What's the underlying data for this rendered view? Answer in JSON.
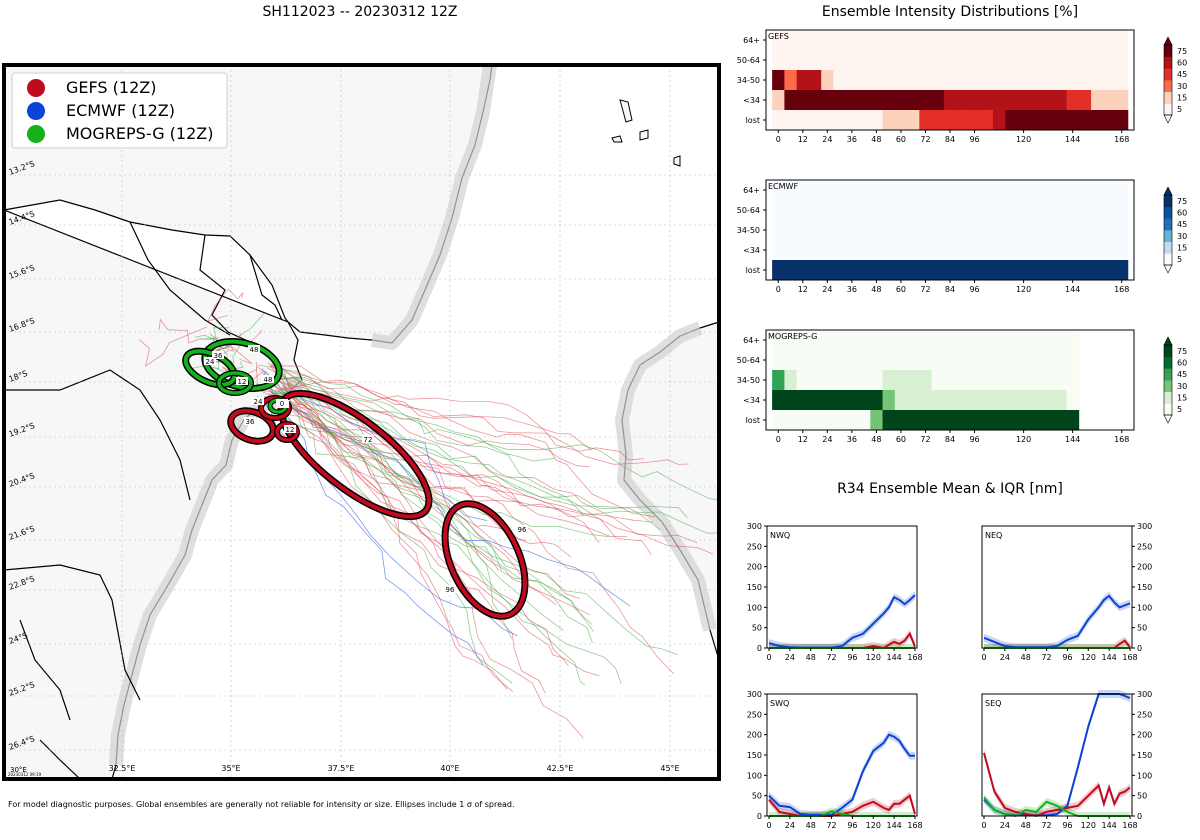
{
  "title": "SH112023 -- 20230312 12Z",
  "footnote": "For model diagnostic purposes. Global ensembles are generally not reliable for intensity or size. Ellipses include 1 σ of spread.",
  "stamp": "20230312 09:19",
  "legend": [
    {
      "label": "GEFS (12Z)",
      "color": "#c10a1e"
    },
    {
      "label": "ECMWF (12Z)",
      "color": "#0a44d6"
    },
    {
      "label": "MOGREPS-G (12Z)",
      "color": "#16b01c"
    }
  ],
  "map": {
    "lat_labels": [
      "13.2°S",
      "14.4°S",
      "15.6°S",
      "16.8°S",
      "18°S",
      "19.2°S",
      "20.4°S",
      "21.6°S",
      "22.8°S",
      "24°S",
      "25.2°S",
      "26.4°S"
    ],
    "lon_labels": [
      "32.5°E",
      "35°E",
      "37.5°E",
      "40°E",
      "42.5°E",
      "45°E"
    ],
    "corner_label": "30°E",
    "ellipse_labels_gefs": [
      "0",
      "12",
      "24",
      "36",
      "48",
      "72",
      "96",
      "96"
    ],
    "ellipse_labels_mog": [
      "0",
      "12",
      "24",
      "36",
      "48"
    ]
  },
  "intensity": {
    "title": "Ensemble Intensity Distributions [%]",
    "rows": [
      "64+",
      "50-64",
      "34-50",
      "<34",
      "lost"
    ],
    "xticks": [
      "0",
      "12",
      "24",
      "36",
      "48",
      "60",
      "72",
      "84",
      "96",
      "120",
      "144",
      "168"
    ],
    "cbar_ticks": [
      "5",
      "15",
      "30",
      "45",
      "60",
      "75"
    ],
    "panels": [
      {
        "name": "GEFS",
        "cmap": "reds"
      },
      {
        "name": "ECMWF",
        "cmap": "blues"
      },
      {
        "name": "MOGREPS-G",
        "cmap": "greens"
      }
    ]
  },
  "r34": {
    "title": "R34 Ensemble Mean & IQR [nm]",
    "yticks": [
      "0",
      "50",
      "100",
      "150",
      "200",
      "250",
      "300"
    ],
    "xticks": [
      "0",
      "24",
      "48",
      "72",
      "96",
      "120",
      "144",
      "168"
    ],
    "panels": [
      "NWQ",
      "NEQ",
      "SWQ",
      "SEQ"
    ]
  },
  "chart_data": [
    {
      "type": "heatmap",
      "title": "GEFS",
      "x": [
        0,
        6,
        12,
        18,
        24,
        30,
        36,
        42,
        48,
        54,
        60,
        66,
        72,
        78,
        84,
        90,
        96,
        102,
        108,
        114,
        120,
        126,
        132,
        138,
        144,
        150,
        156,
        162,
        168
      ],
      "rows": [
        "64+",
        "50-64",
        "34-50",
        "<34",
        "lost"
      ],
      "values": [
        [
          2,
          2,
          2,
          2,
          2,
          2,
          2,
          2,
          2,
          2,
          2,
          2,
          2,
          2,
          2,
          2,
          2,
          2,
          2,
          2,
          2,
          2,
          2,
          2,
          2,
          2,
          2,
          2,
          2
        ],
        [
          2,
          2,
          2,
          2,
          2,
          2,
          2,
          2,
          2,
          2,
          2,
          2,
          2,
          2,
          2,
          2,
          2,
          2,
          2,
          2,
          2,
          2,
          2,
          2,
          2,
          2,
          2,
          2,
          2
        ],
        [
          80,
          18,
          45,
          45,
          12,
          2,
          2,
          2,
          2,
          2,
          2,
          2,
          2,
          2,
          2,
          2,
          2,
          2,
          2,
          2,
          2,
          2,
          2,
          2,
          2,
          2,
          2,
          2,
          2
        ],
        [
          12,
          70,
          70,
          80,
          80,
          80,
          80,
          80,
          80,
          80,
          80,
          70,
          70,
          70,
          55,
          55,
          55,
          55,
          45,
          45,
          45,
          45,
          45,
          45,
          30,
          30,
          12,
          12,
          12
        ],
        [
          2,
          2,
          2,
          2,
          2,
          2,
          2,
          2,
          2,
          8,
          8,
          12,
          30,
          30,
          30,
          30,
          30,
          30,
          45,
          60,
          60,
          60,
          60,
          60,
          60,
          60,
          60,
          80,
          80
        ]
      ]
    },
    {
      "type": "heatmap",
      "title": "ECMWF",
      "x": [
        0,
        6,
        12,
        18,
        24,
        30,
        36,
        42,
        48,
        54,
        60,
        66,
        72,
        78,
        84,
        90,
        96,
        102,
        108,
        114,
        120,
        126,
        132,
        138,
        144,
        150,
        156,
        162,
        168
      ],
      "rows": [
        "64+",
        "50-64",
        "34-50",
        "<34",
        "lost"
      ],
      "values": [
        [
          2,
          2,
          2,
          2,
          2,
          2,
          2,
          2,
          2,
          2,
          2,
          2,
          2,
          2,
          2,
          2,
          2,
          2,
          2,
          2,
          2,
          2,
          2,
          2,
          2,
          2,
          2,
          2,
          2
        ],
        [
          2,
          2,
          2,
          2,
          2,
          2,
          2,
          2,
          2,
          2,
          2,
          2,
          2,
          2,
          2,
          2,
          2,
          2,
          2,
          2,
          2,
          2,
          2,
          2,
          2,
          2,
          2,
          2,
          2
        ],
        [
          2,
          2,
          2,
          2,
          2,
          2,
          2,
          2,
          2,
          2,
          2,
          2,
          2,
          2,
          2,
          2,
          2,
          2,
          2,
          2,
          2,
          2,
          2,
          2,
          2,
          2,
          2,
          2,
          2
        ],
        [
          2,
          2,
          2,
          2,
          2,
          2,
          2,
          2,
          2,
          2,
          2,
          2,
          2,
          2,
          2,
          2,
          2,
          2,
          2,
          2,
          2,
          2,
          2,
          2,
          2,
          2,
          2,
          2,
          2
        ],
        [
          100,
          100,
          100,
          100,
          100,
          100,
          100,
          100,
          100,
          100,
          100,
          100,
          100,
          100,
          100,
          100,
          100,
          100,
          100,
          100,
          100,
          100,
          100,
          100,
          100,
          100,
          100,
          100,
          100
        ]
      ]
    },
    {
      "type": "heatmap",
      "title": "MOGREPS-G",
      "x": [
        0,
        6,
        12,
        18,
        24,
        30,
        36,
        42,
        48,
        54,
        60,
        66,
        72,
        78,
        84,
        90,
        96,
        102,
        108,
        114,
        120,
        126,
        132,
        138,
        144
      ],
      "rows": [
        "64+",
        "50-64",
        "34-50",
        "<34",
        "lost"
      ],
      "values": [
        [
          3,
          3,
          3,
          3,
          3,
          3,
          3,
          3,
          3,
          3,
          3,
          3,
          3,
          3,
          3,
          3,
          3,
          3,
          3,
          3,
          3,
          3,
          3,
          3,
          3
        ],
        [
          3,
          3,
          3,
          3,
          3,
          3,
          3,
          3,
          3,
          3,
          3,
          3,
          3,
          3,
          3,
          3,
          3,
          3,
          3,
          3,
          3,
          3,
          3,
          3,
          3
        ],
        [
          40,
          12,
          3,
          3,
          3,
          3,
          3,
          3,
          3,
          12,
          12,
          12,
          12,
          3,
          3,
          3,
          3,
          3,
          3,
          3,
          3,
          3,
          3,
          3,
          3
        ],
        [
          60,
          80,
          80,
          80,
          80,
          80,
          80,
          80,
          60,
          25,
          12,
          12,
          12,
          12,
          12,
          12,
          12,
          12,
          12,
          12,
          12,
          12,
          12,
          12,
          3
        ],
        [
          3,
          3,
          3,
          3,
          3,
          3,
          3,
          3,
          25,
          60,
          60,
          80,
          80,
          80,
          80,
          80,
          80,
          80,
          80,
          80,
          80,
          80,
          80,
          80,
          80
        ]
      ]
    },
    {
      "type": "line",
      "title": "NWQ",
      "x": [
        0,
        12,
        24,
        36,
        48,
        60,
        72,
        84,
        96,
        108,
        120,
        132,
        138,
        144,
        150,
        156,
        162,
        168
      ],
      "ylim": [
        0,
        300
      ],
      "series": [
        {
          "name": "ECMWF",
          "color": "#0a44d6",
          "values": [
            12,
            5,
            2,
            1,
            1,
            1,
            1,
            5,
            25,
            35,
            60,
            85,
            100,
            125,
            118,
            108,
            118,
            130
          ]
        },
        {
          "name": "GEFS",
          "color": "#c10a1e",
          "values": [
            0,
            0,
            0,
            0,
            0,
            0,
            0,
            0,
            0,
            0,
            5,
            0,
            8,
            15,
            10,
            18,
            35,
            3
          ]
        },
        {
          "name": "MOGREPS-G",
          "color": "#16b01c",
          "values": [
            0,
            0,
            0,
            0,
            0,
            0,
            0,
            0,
            0,
            0,
            0,
            0,
            0,
            0,
            0,
            0,
            0,
            0
          ]
        }
      ]
    },
    {
      "type": "line",
      "title": "NEQ",
      "x": [
        0,
        12,
        24,
        36,
        48,
        60,
        72,
        84,
        96,
        108,
        120,
        132,
        138,
        144,
        150,
        156,
        162,
        168
      ],
      "ylim": [
        0,
        300
      ],
      "series": [
        {
          "name": "ECMWF",
          "color": "#0a44d6",
          "values": [
            25,
            15,
            5,
            2,
            2,
            2,
            2,
            5,
            20,
            30,
            70,
            100,
            118,
            128,
            112,
            100,
            105,
            110
          ]
        },
        {
          "name": "GEFS",
          "color": "#c10a1e",
          "values": [
            0,
            0,
            0,
            0,
            0,
            0,
            0,
            0,
            0,
            0,
            0,
            0,
            0,
            0,
            0,
            10,
            18,
            2
          ]
        },
        {
          "name": "MOGREPS-G",
          "color": "#16b01c",
          "values": [
            0,
            0,
            0,
            0,
            0,
            0,
            0,
            0,
            0,
            0,
            0,
            0,
            0,
            0,
            0,
            0,
            0,
            0
          ]
        }
      ]
    },
    {
      "type": "line",
      "title": "SWQ",
      "x": [
        0,
        12,
        24,
        36,
        48,
        60,
        72,
        84,
        96,
        108,
        120,
        132,
        138,
        144,
        150,
        156,
        162,
        168
      ],
      "ylim": [
        0,
        300
      ],
      "series": [
        {
          "name": "ECMWF",
          "color": "#0a44d6",
          "values": [
            50,
            25,
            22,
            5,
            3,
            3,
            3,
            20,
            40,
            110,
            160,
            180,
            200,
            195,
            185,
            165,
            148,
            148
          ]
        },
        {
          "name": "GEFS",
          "color": "#c10a1e",
          "values": [
            40,
            10,
            5,
            0,
            0,
            0,
            0,
            5,
            10,
            25,
            35,
            20,
            15,
            30,
            30,
            40,
            50,
            5
          ]
        },
        {
          "name": "MOGREPS-G",
          "color": "#16b01c",
          "values": [
            0,
            0,
            0,
            0,
            0,
            0,
            12,
            5,
            0,
            0,
            0,
            0,
            0,
            0,
            0,
            0,
            0,
            0
          ]
        }
      ]
    },
    {
      "type": "line",
      "title": "SEQ",
      "x": [
        0,
        12,
        24,
        36,
        48,
        60,
        72,
        84,
        96,
        108,
        120,
        132,
        138,
        144,
        150,
        156,
        162,
        168
      ],
      "ylim": [
        0,
        300
      ],
      "series": [
        {
          "name": "ECMWF",
          "color": "#0a44d6",
          "values": [
            40,
            15,
            5,
            2,
            2,
            2,
            2,
            5,
            25,
            120,
            220,
            300,
            310,
            310,
            305,
            300,
            295,
            290
          ]
        },
        {
          "name": "GEFS",
          "color": "#c10a1e",
          "values": [
            155,
            60,
            20,
            10,
            5,
            0,
            10,
            15,
            20,
            25,
            50,
            75,
            30,
            70,
            30,
            55,
            60,
            70
          ]
        },
        {
          "name": "MOGREPS-G",
          "color": "#16b01c",
          "values": [
            45,
            15,
            5,
            0,
            15,
            10,
            35,
            25,
            10,
            0,
            0,
            0,
            0,
            0,
            0,
            0,
            0,
            0
          ]
        }
      ]
    }
  ]
}
